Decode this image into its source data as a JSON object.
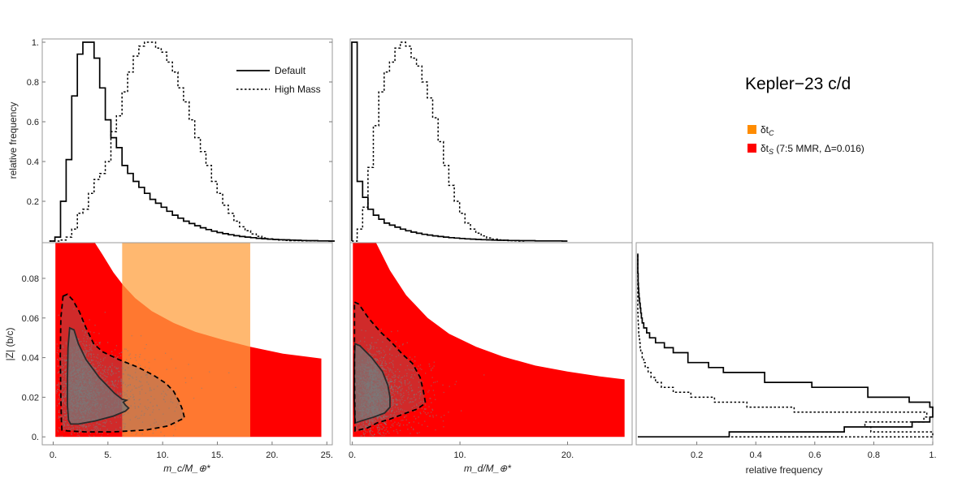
{
  "chart_data": [
    {
      "type": "step-histogram",
      "panel": "mc-marginal",
      "ylabel": "relative frequency",
      "xlim": [
        0,
        25.5
      ],
      "ylim": [
        0,
        1
      ],
      "yticks": [
        0.2,
        0.4,
        0.6,
        0.8,
        1.0
      ],
      "ytick_labels": [
        "0.2",
        "0.4",
        "0.6",
        "0.8",
        "1."
      ],
      "bin_width": 0.5,
      "series": [
        {
          "name": "Default",
          "style": "solid",
          "x0": 0.2,
          "values": [
            0.0,
            0.02,
            0.2,
            0.41,
            0.73,
            0.94,
            1.0,
            1.0,
            0.92,
            0.77,
            0.61,
            0.52,
            0.47,
            0.38,
            0.34,
            0.3,
            0.27,
            0.24,
            0.21,
            0.19,
            0.17,
            0.15,
            0.13,
            0.115,
            0.1,
            0.088,
            0.077,
            0.067,
            0.058,
            0.05,
            0.043,
            0.037,
            0.032,
            0.027,
            0.023,
            0.02,
            0.017,
            0.014,
            0.012,
            0.01,
            0.008,
            0.007,
            0.006,
            0.005,
            0.004,
            0.003,
            0.002,
            0.002,
            0.001,
            0.001,
            0.0
          ]
        },
        {
          "name": "High Mass",
          "style": "dotted",
          "x0": 0.2,
          "values": [
            0.0,
            0.0,
            0.005,
            0.02,
            0.06,
            0.14,
            0.16,
            0.24,
            0.31,
            0.34,
            0.4,
            0.55,
            0.63,
            0.75,
            0.85,
            0.93,
            0.98,
            1.0,
            1.0,
            0.97,
            0.95,
            0.9,
            0.85,
            0.77,
            0.7,
            0.61,
            0.52,
            0.45,
            0.38,
            0.3,
            0.24,
            0.18,
            0.14,
            0.1,
            0.072,
            0.052,
            0.036,
            0.024,
            0.016,
            0.011,
            0.007,
            0.005,
            0.003,
            0.002,
            0.002,
            0.001,
            0.001,
            0.001,
            0.001,
            0.001,
            0.0
          ]
        }
      ]
    },
    {
      "type": "step-histogram",
      "panel": "md-marginal",
      "xlim": [
        0,
        26
      ],
      "ylim": [
        0,
        1
      ],
      "bin_width": 0.5,
      "series": [
        {
          "name": "Default",
          "style": "solid",
          "x0": 0.0,
          "values": [
            1.0,
            0.3,
            0.22,
            0.16,
            0.13,
            0.11,
            0.09,
            0.08,
            0.07,
            0.06,
            0.052,
            0.045,
            0.039,
            0.034,
            0.03,
            0.026,
            0.023,
            0.02,
            0.017,
            0.015,
            0.013,
            0.011,
            0.01,
            0.008,
            0.007,
            0.006,
            0.005,
            0.004,
            0.004,
            0.003,
            0.003,
            0.002,
            0.002,
            0.002,
            0.001,
            0.001,
            0.001,
            0.001,
            0.001,
            0.0
          ]
        },
        {
          "name": "High Mass",
          "style": "dotted",
          "x0": 0.0,
          "values": [
            0.0,
            0.06,
            0.17,
            0.37,
            0.58,
            0.75,
            0.85,
            0.9,
            0.97,
            1.0,
            0.98,
            0.92,
            0.88,
            0.8,
            0.72,
            0.62,
            0.5,
            0.38,
            0.28,
            0.2,
            0.14,
            0.09,
            0.06,
            0.04,
            0.026,
            0.016,
            0.01,
            0.006,
            0.004,
            0.002,
            0.001,
            0.0
          ]
        }
      ]
    },
    {
      "type": "scatter-contour",
      "panel": "mc-vs-Z",
      "xlabel": "m_c/M_⊕*",
      "ylabel": "|Z| (b/c)",
      "xlim": [
        -1,
        25.5
      ],
      "ylim": [
        -0.004,
        0.098
      ],
      "xticks": [
        0,
        5,
        10,
        15,
        20,
        25
      ],
      "xtick_labels": [
        "0.",
        "5.",
        "10.",
        "15.",
        "20.",
        "25."
      ],
      "yticks": [
        0,
        0.02,
        0.04,
        0.06,
        0.08
      ],
      "ytick_labels": [
        "0.",
        "0.02",
        "0.04",
        "0.06",
        "0.08"
      ],
      "region_S": {
        "x_range": [
          0.2,
          24.5
        ],
        "upper_boundary": [
          [
            3.8,
            0.098
          ],
          [
            4.5,
            0.092
          ],
          [
            5.5,
            0.083
          ],
          [
            6.4,
            0.0765
          ],
          [
            7.5,
            0.07
          ],
          [
            9,
            0.0635
          ],
          [
            11,
            0.0575
          ],
          [
            13,
            0.053
          ],
          [
            15.5,
            0.049
          ],
          [
            18,
            0.0455
          ],
          [
            21,
            0.042
          ],
          [
            24.5,
            0.0395
          ]
        ]
      },
      "region_C": {
        "x_range": [
          6.3,
          18
        ],
        "y_range": [
          0,
          0.098
        ]
      },
      "contours": [
        {
          "level": "inner",
          "style": "solid",
          "points": [
            [
              1.5,
              0.055
            ],
            [
              1.9,
              0.054
            ],
            [
              2.3,
              0.047
            ],
            [
              3.0,
              0.039
            ],
            [
              4.2,
              0.03
            ],
            [
              5.6,
              0.022
            ],
            [
              6.3,
              0.019
            ],
            [
              6.7,
              0.0185
            ],
            [
              6.4,
              0.0175
            ],
            [
              6.6,
              0.016
            ],
            [
              6.9,
              0.0145
            ],
            [
              6.6,
              0.013
            ],
            [
              5.5,
              0.0105
            ],
            [
              3.8,
              0.008
            ],
            [
              2.3,
              0.0065
            ],
            [
              1.6,
              0.0065
            ],
            [
              1.4,
              0.0085
            ],
            [
              1.3,
              0.016
            ],
            [
              1.3,
              0.03
            ],
            [
              1.35,
              0.045
            ],
            [
              1.5,
              0.055
            ]
          ]
        },
        {
          "level": "outer",
          "style": "dashed",
          "points": [
            [
              0.9,
              0.071
            ],
            [
              1.3,
              0.072
            ],
            [
              1.8,
              0.069
            ],
            [
              2.4,
              0.063
            ],
            [
              3.0,
              0.055
            ],
            [
              3.7,
              0.047
            ],
            [
              4.5,
              0.043
            ],
            [
              6.0,
              0.039
            ],
            [
              7.8,
              0.035
            ],
            [
              9.2,
              0.031
            ],
            [
              10.3,
              0.027
            ],
            [
              11.0,
              0.023
            ],
            [
              11.5,
              0.018
            ],
            [
              11.8,
              0.014
            ],
            [
              12.0,
              0.0095
            ],
            [
              11.6,
              0.0085
            ],
            [
              10.5,
              0.0055
            ],
            [
              8.5,
              0.0035
            ],
            [
              5.5,
              0.0025
            ],
            [
              3.0,
              0.0025
            ],
            [
              1.3,
              0.003
            ],
            [
              0.8,
              0.0035
            ],
            [
              0.75,
              0.008
            ],
            [
              0.7,
              0.02
            ],
            [
              0.65,
              0.04
            ],
            [
              0.7,
              0.06
            ],
            [
              0.9,
              0.071
            ]
          ]
        }
      ]
    },
    {
      "type": "scatter-contour",
      "panel": "md-vs-Z",
      "xlabel": "m_d/M_⊕*",
      "xlim": [
        -0.2,
        26
      ],
      "ylim": [
        -0.004,
        0.098
      ],
      "xticks": [
        0,
        10,
        20
      ],
      "xtick_labels": [
        "0.",
        "10.",
        "20."
      ],
      "region_S": {
        "x_range": [
          0.05,
          25.3
        ],
        "upper_boundary": [
          [
            2.2,
            0.098
          ],
          [
            3.5,
            0.084
          ],
          [
            5,
            0.0715
          ],
          [
            7,
            0.06
          ],
          [
            9,
            0.052
          ],
          [
            11.5,
            0.0455
          ],
          [
            14,
            0.0405
          ],
          [
            17,
            0.036
          ],
          [
            20,
            0.033
          ],
          [
            23,
            0.0305
          ],
          [
            25.3,
            0.029
          ]
        ]
      },
      "contours": [
        {
          "level": "inner",
          "style": "solid",
          "points": [
            [
              0.25,
              0.047
            ],
            [
              0.7,
              0.046
            ],
            [
              1.8,
              0.04
            ],
            [
              2.8,
              0.033
            ],
            [
              3.3,
              0.026
            ],
            [
              3.5,
              0.02
            ],
            [
              3.5,
              0.015
            ],
            [
              3.0,
              0.012
            ],
            [
              2.0,
              0.01
            ],
            [
              0.8,
              0.008
            ],
            [
              0.25,
              0.007
            ],
            [
              0.18,
              0.02
            ],
            [
              0.2,
              0.04
            ],
            [
              0.25,
              0.047
            ]
          ]
        },
        {
          "level": "outer",
          "style": "dashed",
          "points": [
            [
              0.2,
              0.068
            ],
            [
              0.6,
              0.067
            ],
            [
              1.5,
              0.06
            ],
            [
              2.6,
              0.053
            ],
            [
              3.6,
              0.048
            ],
            [
              4.6,
              0.042
            ],
            [
              5.6,
              0.037
            ],
            [
              6.3,
              0.03
            ],
            [
              6.6,
              0.023
            ],
            [
              6.8,
              0.017
            ],
            [
              6.0,
              0.014
            ],
            [
              5.0,
              0.012
            ],
            [
              3.5,
              0.009
            ],
            [
              2.3,
              0.007
            ],
            [
              1.4,
              0.0045
            ],
            [
              0.6,
              0.0035
            ],
            [
              0.25,
              0.003
            ],
            [
              0.2,
              0.03
            ],
            [
              0.2,
              0.068
            ]
          ]
        }
      ]
    },
    {
      "type": "step-histogram-horizontal",
      "panel": "Z-marginal",
      "xlabel": "relative frequency",
      "xlim": [
        0,
        1
      ],
      "xticks": [
        0.2,
        0.4,
        0.6,
        0.8,
        1.0
      ],
      "xtick_labels": [
        "0.2",
        "0.4",
        "0.6",
        "0.8",
        "1."
      ],
      "bin_edges_y": [
        0.0,
        0.0025,
        0.005,
        0.0075,
        0.01,
        0.0125,
        0.015,
        0.0175,
        0.02,
        0.0225,
        0.025,
        0.0275,
        0.03,
        0.0325,
        0.035,
        0.0375,
        0.04,
        0.0425,
        0.045,
        0.0475,
        0.05,
        0.0525,
        0.055,
        0.0575,
        0.06,
        0.0625,
        0.065,
        0.0675,
        0.07,
        0.0725,
        0.075,
        0.0775,
        0.08,
        0.0825,
        0.085,
        0.0875,
        0.09,
        0.0925
      ],
      "series": [
        {
          "name": "Default",
          "style": "solid",
          "values": [
            0.31,
            0.7,
            0.93,
            0.99,
            1.0,
            1.0,
            0.99,
            0.92,
            0.78,
            0.78,
            0.59,
            0.43,
            0.43,
            0.29,
            0.24,
            0.17,
            0.17,
            0.12,
            0.09,
            0.06,
            0.04,
            0.03,
            0.02,
            0.015,
            0.012,
            0.01,
            0.008,
            0.006,
            0.004,
            0.003,
            0.002,
            0.001,
            0.001,
            0.0,
            0.0,
            0.0,
            0.0
          ]
        },
        {
          "name": "High Mass",
          "style": "dotted",
          "values": [
            1.0,
            0.79,
            0.77,
            0.97,
            0.98,
            0.53,
            0.37,
            0.26,
            0.18,
            0.12,
            0.08,
            0.06,
            0.045,
            0.035,
            0.025,
            0.02,
            0.015,
            0.01,
            0.008,
            0.006,
            0.004,
            0.003,
            0.002,
            0.001,
            0.001,
            0.0,
            0.0,
            0.0,
            0.0,
            0.0,
            0.0,
            0.0,
            0.0,
            0.0,
            0.0,
            0.0,
            0.0
          ]
        }
      ]
    }
  ],
  "figure": {
    "title": "Kepler−23 c/d",
    "legend_lines": [
      {
        "label": "Default",
        "style": "solid"
      },
      {
        "label": "High Mass",
        "style": "dotted"
      }
    ],
    "legend_regions": [
      {
        "symbol": "δt",
        "sub": "C",
        "note": "",
        "color": "#FF8C00"
      },
      {
        "symbol": "δt",
        "sub": "S",
        "note": " (7:5 MMR, Δ=0.016)",
        "color": "#FF0000"
      }
    ],
    "colors": {
      "region_S": "#FF0000",
      "region_C": "#FFA040",
      "scatter": "#808080",
      "inner_fill": "#777777"
    }
  }
}
